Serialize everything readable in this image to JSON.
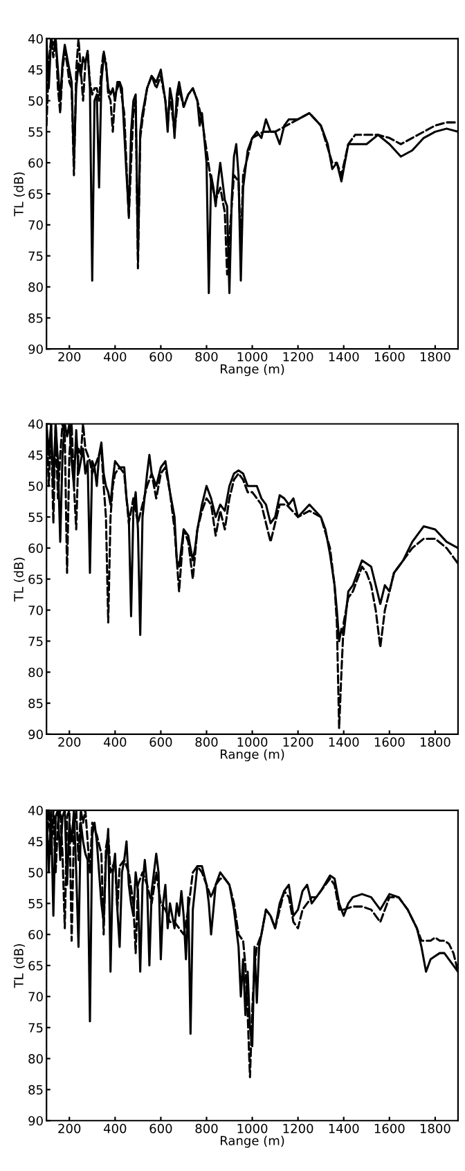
{
  "chart_data": [
    {
      "type": "line",
      "xlabel": "Range (m)",
      "ylabel": "TL (dB)",
      "xlim": [
        100,
        1900
      ],
      "ylim": [
        90,
        40
      ],
      "xticks": [
        200,
        400,
        600,
        800,
        1000,
        1200,
        1400,
        1600,
        1800
      ],
      "yticks": [
        40,
        45,
        50,
        55,
        60,
        65,
        70,
        75,
        80,
        85,
        90
      ],
      "grid": false,
      "legend": false,
      "series": [
        {
          "color": "#000000",
          "line_style": "solid",
          "x": [
            100,
            110,
            120,
            130,
            140,
            150,
            160,
            170,
            180,
            190,
            200,
            210,
            220,
            230,
            240,
            250,
            260,
            270,
            280,
            290,
            300,
            310,
            320,
            330,
            340,
            350,
            360,
            370,
            380,
            390,
            400,
            410,
            420,
            430,
            440,
            450,
            460,
            470,
            480,
            490,
            500,
            510,
            520,
            540,
            560,
            580,
            600,
            620,
            630,
            640,
            650,
            660,
            670,
            680,
            700,
            720,
            740,
            760,
            770,
            780,
            800,
            810,
            820,
            830,
            840,
            850,
            860,
            870,
            880,
            890,
            900,
            910,
            920,
            930,
            940,
            950,
            960,
            980,
            1000,
            1020,
            1040,
            1060,
            1080,
            1100,
            1120,
            1140,
            1160,
            1200,
            1250,
            1300,
            1330,
            1350,
            1370,
            1390,
            1420,
            1450,
            1500,
            1550,
            1600,
            1650,
            1700,
            1750,
            1800,
            1850,
            1900
          ],
          "values": [
            40,
            48,
            40,
            41,
            40,
            45,
            50,
            44,
            41,
            43,
            45,
            47,
            60,
            48,
            44,
            46,
            43,
            44,
            42,
            48,
            79,
            50,
            49,
            64,
            47,
            43,
            44,
            48,
            49,
            48,
            50,
            47,
            47,
            48,
            55,
            62,
            68,
            55,
            50,
            49,
            75,
            55,
            52,
            48,
            46,
            47,
            45,
            50,
            55,
            48,
            50,
            56,
            49,
            47,
            51,
            49,
            48,
            50,
            54,
            52,
            60,
            81,
            62,
            64,
            67,
            63,
            60,
            63,
            66,
            67,
            81,
            66,
            59,
            57,
            62,
            79,
            64,
            58,
            56,
            55,
            56,
            53,
            55,
            55,
            57,
            54,
            53,
            53,
            52,
            54,
            57,
            61,
            60,
            63,
            57,
            57,
            57,
            55.5,
            57,
            59,
            58,
            56,
            55,
            54.5,
            55
          ]
        },
        {
          "color": "#000000",
          "line_style": "dashed",
          "x": [
            100,
            110,
            120,
            130,
            140,
            150,
            160,
            170,
            180,
            190,
            200,
            210,
            220,
            230,
            240,
            250,
            260,
            270,
            280,
            290,
            300,
            310,
            320,
            330,
            340,
            350,
            360,
            370,
            380,
            390,
            400,
            420,
            440,
            460,
            470,
            480,
            490,
            500,
            510,
            520,
            540,
            560,
            580,
            600,
            620,
            630,
            640,
            660,
            680,
            700,
            720,
            740,
            760,
            780,
            800,
            820,
            840,
            860,
            880,
            890,
            900,
            920,
            940,
            950,
            960,
            980,
            1000,
            1050,
            1100,
            1150,
            1200,
            1250,
            1300,
            1350,
            1370,
            1390,
            1420,
            1450,
            1500,
            1550,
            1600,
            1650,
            1700,
            1750,
            1800,
            1850,
            1900
          ],
          "values": [
            54,
            44,
            40,
            43,
            40,
            48,
            52,
            45,
            42,
            44,
            47,
            48,
            62,
            45,
            40,
            45,
            50,
            44,
            42,
            47,
            49,
            48,
            48,
            50,
            45,
            42,
            44,
            49,
            50,
            55,
            49,
            47,
            52,
            69,
            60,
            52,
            50,
            77,
            56,
            53,
            48,
            46,
            48,
            46,
            50,
            54,
            49,
            55,
            48,
            51,
            49,
            48,
            50,
            53,
            58,
            63,
            66,
            64,
            68,
            78,
            72,
            62,
            63,
            74,
            62,
            59,
            56,
            55,
            55,
            54,
            53,
            52,
            54,
            60,
            60,
            62,
            57,
            55.5,
            55.5,
            55.5,
            56,
            57,
            56,
            55,
            54,
            53.5,
            53.5
          ]
        }
      ]
    },
    {
      "type": "line",
      "xlabel": "Range (m)",
      "ylabel": "TL (dB)",
      "xlim": [
        100,
        1900
      ],
      "ylim": [
        90,
        40
      ],
      "xticks": [
        200,
        400,
        600,
        800,
        1000,
        1200,
        1400,
        1600,
        1800
      ],
      "yticks": [
        40,
        45,
        50,
        55,
        60,
        65,
        70,
        75,
        80,
        85,
        90
      ],
      "grid": false,
      "legend": false,
      "series": [
        {
          "color": "#000000",
          "line_style": "solid",
          "x": [
            100,
            110,
            120,
            130,
            140,
            150,
            160,
            170,
            180,
            190,
            200,
            210,
            220,
            230,
            240,
            250,
            260,
            270,
            280,
            290,
            300,
            310,
            320,
            330,
            340,
            350,
            360,
            370,
            380,
            390,
            400,
            420,
            440,
            450,
            460,
            470,
            480,
            490,
            500,
            510,
            520,
            540,
            550,
            560,
            580,
            600,
            620,
            640,
            660,
            670,
            680,
            690,
            700,
            720,
            740,
            750,
            760,
            780,
            800,
            820,
            840,
            860,
            880,
            900,
            920,
            940,
            960,
            980,
            1000,
            1020,
            1040,
            1060,
            1080,
            1100,
            1120,
            1140,
            1160,
            1180,
            1200,
            1250,
            1300,
            1320,
            1340,
            1360,
            1370,
            1380,
            1390,
            1400,
            1420,
            1440,
            1460,
            1480,
            1500,
            1520,
            1540,
            1560,
            1580,
            1600,
            1620,
            1640,
            1660,
            1700,
            1750,
            1800,
            1850,
            1900
          ],
          "values": [
            40,
            45,
            40,
            50,
            40,
            46,
            59,
            45,
            40,
            42,
            40,
            46,
            50,
            41,
            48,
            46,
            44,
            48,
            46,
            64,
            46,
            47,
            50,
            45,
            43,
            48,
            50,
            51,
            53,
            49,
            46,
            47,
            47,
            52,
            55,
            71,
            54,
            51,
            57,
            74,
            55,
            48,
            45,
            48,
            50,
            47,
            46,
            51,
            55,
            62,
            63,
            60,
            57,
            58,
            62,
            60,
            57,
            53,
            50,
            52,
            55,
            53,
            54,
            50,
            48,
            47.5,
            48,
            50,
            50,
            50,
            52,
            53,
            56,
            55,
            51.5,
            52,
            53,
            52,
            55,
            53,
            55,
            57,
            61,
            66,
            70,
            75,
            73,
            74,
            67,
            66,
            64,
            62,
            62.5,
            63,
            66,
            69,
            66,
            67,
            64,
            63,
            62,
            59,
            56.5,
            57,
            59,
            60
          ]
        },
        {
          "color": "#000000",
          "line_style": "dashed",
          "x": [
            100,
            110,
            120,
            130,
            140,
            150,
            160,
            170,
            180,
            190,
            200,
            210,
            220,
            230,
            240,
            250,
            260,
            270,
            280,
            290,
            300,
            320,
            340,
            350,
            360,
            370,
            380,
            390,
            400,
            420,
            440,
            460,
            480,
            500,
            520,
            540,
            560,
            580,
            600,
            620,
            640,
            660,
            680,
            700,
            720,
            740,
            760,
            780,
            800,
            820,
            840,
            860,
            880,
            900,
            920,
            940,
            960,
            980,
            1000,
            1020,
            1040,
            1060,
            1080,
            1100,
            1120,
            1150,
            1200,
            1250,
            1300,
            1340,
            1360,
            1370,
            1380,
            1390,
            1400,
            1420,
            1440,
            1460,
            1480,
            1500,
            1520,
            1540,
            1560,
            1580,
            1600,
            1620,
            1660,
            1700,
            1750,
            1800,
            1850,
            1900
          ],
          "values": [
            40,
            50,
            40,
            56,
            40,
            52,
            45,
            40,
            42,
            64,
            45,
            40,
            50,
            57,
            44,
            45,
            40,
            44,
            45,
            46,
            48,
            46,
            44,
            50,
            55,
            72,
            55,
            50,
            48,
            47,
            48,
            56,
            52,
            56,
            53,
            50,
            48,
            52,
            48,
            47,
            51,
            57,
            67,
            57,
            59,
            65,
            57,
            54,
            52,
            53,
            58,
            54,
            57,
            52,
            49,
            48,
            49,
            51,
            51,
            52,
            53,
            56,
            59,
            56,
            53,
            53,
            55,
            54,
            55,
            60,
            66,
            72,
            89,
            80,
            72,
            68,
            67,
            65,
            63,
            64,
            66,
            70,
            76,
            70,
            67,
            64,
            62,
            60,
            58.5,
            58.5,
            60,
            62.5
          ]
        }
      ]
    },
    {
      "type": "line",
      "xlabel": "Range (m)",
      "ylabel": "TL (dB)",
      "xlim": [
        100,
        1900
      ],
      "ylim": [
        90,
        40
      ],
      "xticks": [
        200,
        400,
        600,
        800,
        1000,
        1200,
        1400,
        1600,
        1800
      ],
      "yticks": [
        40,
        45,
        50,
        55,
        60,
        65,
        70,
        75,
        80,
        85,
        90
      ],
      "grid": false,
      "legend": false,
      "series": [
        {
          "color": "#000000",
          "line_style": "solid",
          "x": [
            100,
            110,
            120,
            130,
            140,
            150,
            160,
            170,
            180,
            190,
            200,
            210,
            220,
            230,
            240,
            250,
            260,
            270,
            280,
            290,
            300,
            310,
            320,
            330,
            340,
            350,
            360,
            370,
            380,
            390,
            400,
            410,
            420,
            430,
            440,
            450,
            460,
            470,
            480,
            490,
            500,
            510,
            520,
            530,
            540,
            550,
            560,
            570,
            580,
            590,
            600,
            610,
            620,
            630,
            640,
            650,
            660,
            670,
            680,
            690,
            700,
            710,
            720,
            730,
            740,
            760,
            780,
            800,
            810,
            820,
            830,
            840,
            860,
            880,
            900,
            920,
            940,
            950,
            960,
            970,
            980,
            990,
            1000,
            1010,
            1020,
            1030,
            1040,
            1060,
            1080,
            1100,
            1120,
            1140,
            1160,
            1180,
            1200,
            1220,
            1240,
            1260,
            1280,
            1300,
            1340,
            1360,
            1380,
            1400,
            1420,
            1440,
            1480,
            1520,
            1560,
            1600,
            1640,
            1680,
            1720,
            1740,
            1760,
            1780,
            1800,
            1820,
            1840,
            1860,
            1880,
            1900
          ],
          "values": [
            40,
            50,
            40,
            57,
            41,
            40,
            48,
            41,
            40,
            52,
            42,
            45,
            40,
            50,
            62,
            42,
            45,
            47,
            48,
            74,
            44,
            42,
            45,
            50,
            55,
            58,
            48,
            43,
            66,
            50,
            47,
            56,
            62,
            50,
            48,
            45,
            52,
            55,
            57,
            50,
            53,
            66,
            52,
            48,
            52,
            65,
            53,
            50,
            47,
            50,
            64,
            55,
            52,
            59,
            55,
            57,
            59,
            55,
            57,
            53,
            57,
            64,
            54,
            76,
            56,
            49,
            49,
            52,
            55,
            60,
            56,
            52,
            50,
            51,
            52,
            56,
            62,
            70,
            64,
            73,
            66,
            75,
            78,
            62,
            71,
            62,
            60,
            56,
            57,
            59,
            55,
            53,
            52,
            57,
            56,
            53,
            52,
            55,
            54,
            53,
            50.5,
            51,
            55,
            57,
            55,
            54,
            53.5,
            54,
            56,
            53.5,
            54,
            56,
            59,
            62,
            66,
            64,
            63.5,
            63,
            63,
            64,
            65,
            66
          ]
        },
        {
          "color": "#000000",
          "line_style": "dashed",
          "x": [
            100,
            110,
            120,
            130,
            140,
            150,
            160,
            170,
            180,
            190,
            200,
            210,
            220,
            230,
            240,
            250,
            260,
            270,
            280,
            290,
            300,
            320,
            340,
            350,
            360,
            370,
            380,
            400,
            410,
            420,
            440,
            460,
            480,
            490,
            500,
            520,
            540,
            560,
            580,
            600,
            620,
            640,
            660,
            680,
            700,
            720,
            740,
            760,
            780,
            800,
            820,
            840,
            860,
            880,
            900,
            920,
            940,
            960,
            970,
            980,
            990,
            1000,
            1010,
            1020,
            1040,
            1060,
            1080,
            1100,
            1120,
            1140,
            1160,
            1180,
            1200,
            1220,
            1240,
            1260,
            1280,
            1300,
            1340,
            1360,
            1380,
            1400,
            1440,
            1480,
            1520,
            1560,
            1600,
            1640,
            1680,
            1720,
            1740,
            1760,
            1780,
            1800,
            1820,
            1840,
            1860,
            1880,
            1900
          ],
          "values": [
            45,
            40,
            47,
            40,
            50,
            42,
            40,
            47,
            59,
            41,
            40,
            61,
            43,
            40,
            48,
            40,
            42,
            40,
            45,
            50,
            42,
            44,
            47,
            60,
            46,
            44,
            50,
            48,
            56,
            49,
            48,
            50,
            55,
            63,
            52,
            50,
            52,
            55,
            50,
            55,
            56,
            58,
            58,
            59,
            60,
            56,
            50,
            49,
            50,
            52,
            54,
            52,
            51,
            51,
            52,
            55,
            60,
            61,
            65,
            73,
            83,
            72,
            65,
            62,
            60,
            56,
            57,
            59,
            56,
            53,
            54,
            58,
            59,
            56,
            55,
            54,
            54,
            53,
            51,
            52,
            56,
            56,
            55.5,
            55.5,
            56,
            58,
            54,
            54,
            56,
            59,
            61,
            61,
            61,
            60.5,
            61,
            61,
            61.5,
            63,
            66
          ]
        }
      ]
    }
  ]
}
